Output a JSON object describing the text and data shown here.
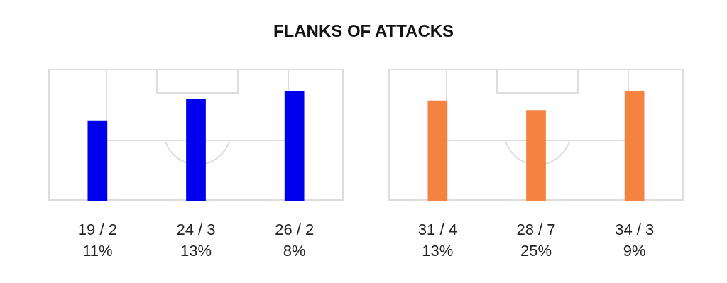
{
  "chart_data": [
    {
      "type": "other",
      "title": "FLANKS OF ATTACKS",
      "categories": [
        null,
        null,
        null
      ],
      "values": [
        19,
        24,
        26
      ],
      "color": "#0000ee",
      "value_labels": [
        "19 / 2\n11%",
        "24 / 3\n13%",
        "26 / 2\n8%"
      ],
      "legend": false
    },
    {
      "type": "other",
      "categories": [
        null,
        null,
        null
      ],
      "values": [
        31,
        28,
        34
      ],
      "color": "#f5823f",
      "value_labels": [
        "31 / 4\n13%",
        "28 / 7\n25%",
        "34 / 3\n9%"
      ],
      "legend": false
    }
  ]
}
